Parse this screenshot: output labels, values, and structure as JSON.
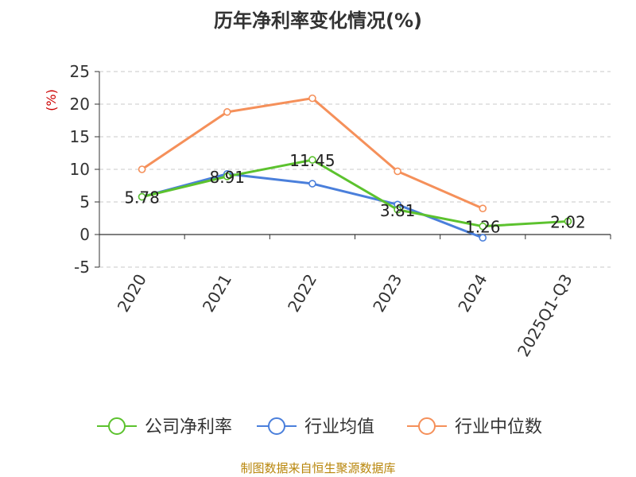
{
  "chart_data": {
    "type": "line",
    "title": "历年净利率变化情况(%)",
    "ylabel": "(%)",
    "xlabel": "",
    "categories": [
      "2020",
      "2021",
      "2022",
      "2023",
      "2024",
      "2025Q1-Q3"
    ],
    "ylim": [
      -5,
      25
    ],
    "yticks": [
      25,
      20,
      15,
      10,
      5,
      0,
      -5
    ],
    "grid": true,
    "legend_position": "bottom",
    "series": [
      {
        "name": "公司净利率",
        "color": "#5cc22e",
        "values": [
          5.78,
          8.91,
          11.45,
          3.81,
          1.26,
          2.02
        ],
        "labels": [
          "5.78",
          "8.91",
          "11.45",
          "3.81",
          "1.26",
          "2.02"
        ]
      },
      {
        "name": "行业均值",
        "color": "#4a7fdb",
        "values": [
          5.78,
          9.3,
          7.8,
          4.6,
          -0.5,
          null
        ]
      },
      {
        "name": "行业中位数",
        "color": "#f5905a",
        "values": [
          10.0,
          18.8,
          20.9,
          9.7,
          4.0,
          null
        ]
      }
    ]
  },
  "footer": {
    "source": "制图数据来自恒生聚源数据库"
  }
}
